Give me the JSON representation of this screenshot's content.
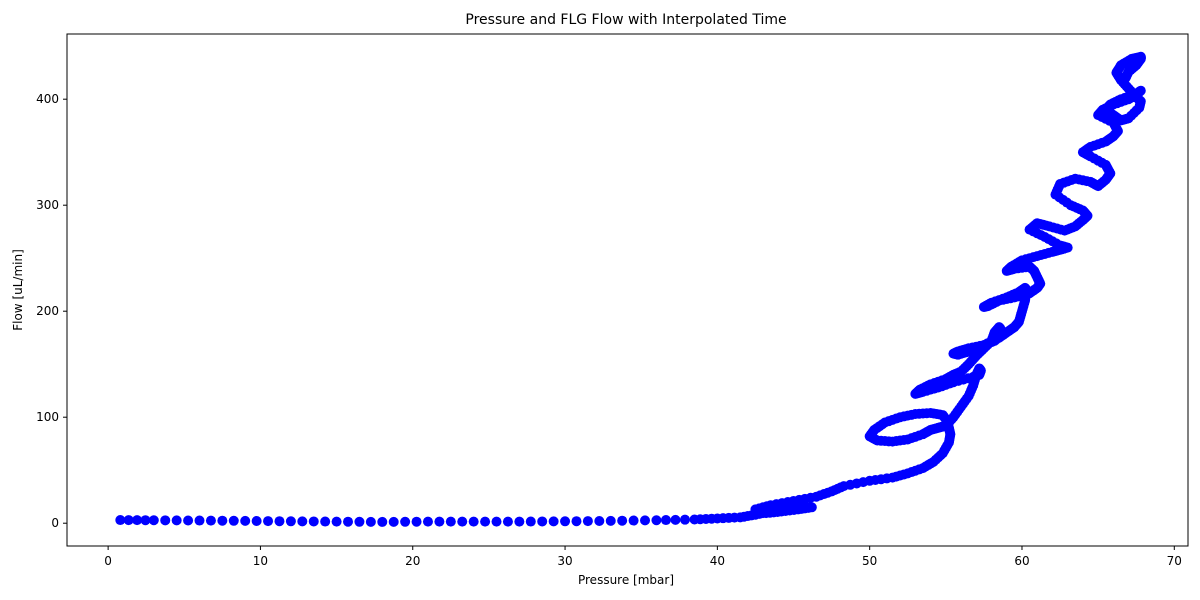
{
  "chart_data": {
    "type": "scatter",
    "title": "Pressure and FLG Flow with Interpolated Time",
    "xlabel": "Pressure [mbar]",
    "ylabel": "Flow [uL/min]",
    "xlim": [
      -2.7,
      70.9
    ],
    "ylim": [
      -21.5,
      461.5
    ],
    "xticks": [
      0,
      10,
      20,
      30,
      40,
      50,
      60,
      70
    ],
    "yticks": [
      0,
      100,
      200,
      300,
      400
    ],
    "grid": false,
    "legend": "none",
    "marker_color": "#0000ff",
    "series": [
      {
        "x": [
          0.8,
          3,
          6,
          9,
          12,
          15,
          18,
          21,
          24,
          27,
          30,
          33,
          36,
          38.5,
          40,
          41.5,
          42.5,
          43.5,
          44.5,
          45.5,
          46.2,
          45.3,
          44.2,
          43.2,
          42.5,
          43.5,
          45,
          46.5,
          47.5,
          48.3,
          50,
          51.5,
          52.5,
          53.5,
          54.2,
          54.8,
          55.2,
          55.3,
          55.2,
          55.1,
          54.8,
          54.0,
          53.0,
          52.0,
          51.0,
          50.3,
          50.0,
          50.5,
          51.5,
          52.5,
          53.5,
          54.0,
          54.5,
          55.0,
          55.5,
          56.0,
          56.5,
          56.8,
          57.0,
          57.2,
          57.3,
          57.2,
          56.8,
          55.5,
          54.5,
          53.5,
          53.0,
          53.3,
          54.0,
          55.0,
          55.5,
          56.0,
          56.5,
          57.0,
          57.5,
          58.0,
          58.2,
          58.5,
          58.6,
          58.6,
          58.5,
          58.2,
          57.5,
          56.5,
          55.8,
          55.5,
          55.8,
          56.5,
          57.5,
          58.5,
          59.0,
          59.5,
          59.8,
          60.0,
          60.2,
          60.3,
          60.2,
          59.8,
          59.0,
          58.0,
          57.5,
          57.8,
          58.5,
          59.5,
          60.5,
          61.0,
          61.2,
          61.0,
          60.8,
          60.5,
          59.5,
          59.0,
          59.3,
          60.0,
          61.0,
          62.0,
          62.5,
          63.0,
          62.5,
          61.5,
          60.5,
          61.0,
          61.8,
          62.8,
          63.5,
          64.0,
          64.3,
          64.0,
          63.2,
          62.2,
          62.5,
          63.5,
          64.5,
          65.0,
          65.5,
          65.8,
          65.5,
          64.5,
          64.0,
          64.5,
          65.5,
          66.0,
          66.3,
          66.0,
          65.0,
          65.3,
          66.0,
          67.0,
          67.5,
          67.8,
          67.5,
          66.5,
          65.8,
          65.5,
          66.0,
          66.5,
          67.0,
          67.7,
          67.8,
          67.5,
          67.0,
          66.5,
          66.2,
          66.5,
          67.2,
          67.8,
          67.8,
          67.5,
          67.0,
          66.8
        ],
        "y": [
          3,
          2.8,
          2.5,
          2.2,
          1.8,
          1.5,
          1.2,
          1.5,
          1.5,
          1.5,
          1.8,
          2.2,
          2.8,
          3.5,
          4.5,
          5.5,
          8,
          11,
          13,
          15,
          15,
          13,
          11,
          9.5,
          13,
          17,
          21,
          25,
          30,
          35,
          40,
          43,
          47,
          52,
          58,
          66,
          76,
          84,
          90,
          96,
          102,
          104,
          103,
          100,
          95,
          88,
          82,
          78,
          77,
          79,
          84,
          88,
          90,
          92,
          100,
          110,
          120,
          130,
          140,
          146,
          144,
          140,
          138,
          133,
          128,
          124,
          122,
          126,
          131,
          136,
          140,
          143,
          150,
          158,
          165,
          172,
          180,
          185,
          183,
          180,
          176,
          172,
          168,
          165,
          162,
          160,
          159,
          162,
          168,
          175,
          180,
          185,
          190,
          200,
          210,
          220,
          222,
          218,
          213,
          208,
          204,
          205,
          210,
          213,
          217,
          222,
          226,
          232,
          238,
          242,
          240,
          238,
          242,
          248,
          252,
          256,
          258,
          260,
          262,
          270,
          277,
          283,
          280,
          276,
          280,
          286,
          290,
          295,
          300,
          310,
          320,
          325,
          322,
          318,
          324,
          330,
          338,
          346,
          350,
          355,
          360,
          365,
          370,
          378,
          385,
          390,
          395,
          400,
          404,
          408,
          405,
          400,
          395,
          390,
          385,
          380,
          382,
          392,
          398,
          402,
          410,
          418,
          425,
          432,
          438,
          440,
          438,
          432,
          426,
          420
        ]
      }
    ]
  }
}
